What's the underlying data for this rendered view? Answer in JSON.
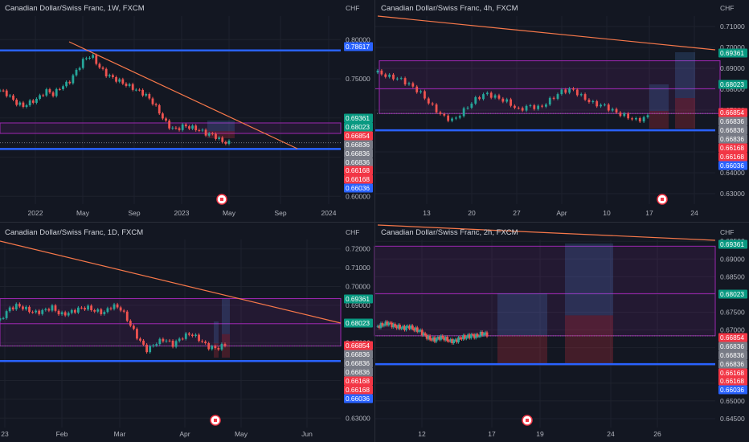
{
  "colors": {
    "background": "#131722",
    "grid": "#1e222d",
    "up": "#26a69a",
    "down": "#ef5350",
    "blue_line": "#2962ff",
    "trend_line": "#f7784a",
    "zone": "#9c27b0",
    "tag_green": "#089981",
    "tag_red": "#f23645",
    "tag_blue": "#2962ff",
    "tag_gray": "#787b86"
  },
  "panels": [
    {
      "title": "Canadian Dollar/Swiss Franc, 1W, FXCM",
      "currency": "CHF",
      "event_icon": "canada-flag-icon"
    },
    {
      "title": "Canadian Dollar/Swiss Franc, 4h, FXCM",
      "currency": "CHF",
      "event_icon": "canada-flag-icon"
    },
    {
      "title": "Canadian Dollar/Swiss Franc, 1D, FXCM",
      "currency": "CHF",
      "event_icon": "canada-flag-icon"
    },
    {
      "title": "Canadian Dollar/Swiss Franc, 2h, FXCM",
      "currency": "CHF",
      "event_icon": "canada-flag-icon"
    }
  ],
  "chart_data": [
    {
      "type": "candlestick",
      "title": "Canadian Dollar/Swiss Franc, 1W, FXCM",
      "ylabel": "CHF",
      "ylim": [
        0.59,
        0.83
      ],
      "y_ticks": [
        "0.80000",
        "0.75000",
        "0.70000",
        "0.65000",
        "0.60000"
      ],
      "x_ticks": [
        "2022",
        "May",
        "Sep",
        "2023",
        "May",
        "Sep",
        "2024"
      ],
      "horizontal_lines": [
        0.78617,
        0.66036
      ],
      "zone": [
        0.68023,
        0.69361
      ],
      "price_tags": [
        {
          "label": "0.78617",
          "color": "blue"
        },
        {
          "label": "0.69361",
          "color": "green"
        },
        {
          "label": "0.68023",
          "color": "green"
        },
        {
          "label": "0.66854",
          "color": "red"
        },
        {
          "label": "0.66836",
          "color": "gray"
        },
        {
          "label": "0.66836",
          "color": "gray"
        },
        {
          "label": "0.66836",
          "color": "gray"
        },
        {
          "label": "0.66168",
          "color": "red"
        },
        {
          "label": "0.66168",
          "color": "red"
        },
        {
          "label": "0.66036",
          "color": "blue"
        }
      ],
      "close_path": [
        0.735,
        0.73,
        0.72,
        0.715,
        0.72,
        0.725,
        0.735,
        0.73,
        0.74,
        0.745,
        0.76,
        0.775,
        0.78,
        0.765,
        0.755,
        0.75,
        0.745,
        0.74,
        0.735,
        0.73,
        0.72,
        0.705,
        0.69,
        0.685,
        0.69,
        0.688,
        0.685,
        0.68,
        0.678,
        0.67,
        0.668
      ]
    },
    {
      "type": "candlestick",
      "title": "Canadian Dollar/Swiss Franc, 4h, FXCM",
      "ylabel": "CHF",
      "ylim": [
        0.625,
        0.715
      ],
      "y_ticks": [
        "0.71000",
        "0.70000",
        "0.69000",
        "0.68000",
        "0.67000",
        "0.66000",
        "0.65000",
        "0.64000",
        "0.63000"
      ],
      "x_ticks": [
        "13",
        "20",
        "27",
        "Apr",
        "10",
        "17",
        "24"
      ],
      "horizontal_lines": [
        0.66036
      ],
      "zone": [
        0.66836,
        0.69361
      ],
      "price_tags": [
        {
          "label": "0.69361",
          "color": "green"
        },
        {
          "label": "0.68023",
          "color": "green"
        },
        {
          "label": "0.66854",
          "color": "red"
        },
        {
          "label": "0.66836",
          "color": "gray"
        },
        {
          "label": "0.66836",
          "color": "gray"
        },
        {
          "label": "0.66836",
          "color": "gray"
        },
        {
          "label": "0.66168",
          "color": "red"
        },
        {
          "label": "0.66168",
          "color": "red"
        },
        {
          "label": "0.66036",
          "color": "blue"
        }
      ],
      "close_path": [
        0.688,
        0.686,
        0.685,
        0.682,
        0.678,
        0.672,
        0.667,
        0.665,
        0.67,
        0.675,
        0.678,
        0.676,
        0.674,
        0.67,
        0.672,
        0.671,
        0.675,
        0.679,
        0.68,
        0.676,
        0.673,
        0.672,
        0.669,
        0.667,
        0.665,
        0.667
      ]
    },
    {
      "type": "candlestick",
      "title": "Canadian Dollar/Swiss Franc, 1D, FXCM",
      "ylabel": "CHF",
      "ylim": [
        0.625,
        0.725
      ],
      "y_ticks": [
        "0.72000",
        "0.71000",
        "0.70000",
        "0.69000",
        "0.68000",
        "0.67000",
        "0.66000",
        "0.65000",
        "0.64000",
        "0.63000"
      ],
      "x_ticks": [
        "23",
        "Feb",
        "Mar",
        "Apr",
        "May",
        "Jun"
      ],
      "horizontal_lines": [
        0.66036
      ],
      "zone": [
        0.66836,
        0.69361
      ],
      "price_tags": [
        {
          "label": "0.69361",
          "color": "green"
        },
        {
          "label": "0.68023",
          "color": "green"
        },
        {
          "label": "0.66854",
          "color": "red"
        },
        {
          "label": "0.66836",
          "color": "gray"
        },
        {
          "label": "0.66836",
          "color": "gray"
        },
        {
          "label": "0.66836",
          "color": "gray"
        },
        {
          "label": "0.66168",
          "color": "red"
        },
        {
          "label": "0.66168",
          "color": "red"
        },
        {
          "label": "0.66036",
          "color": "blue"
        }
      ],
      "close_path": [
        0.682,
        0.688,
        0.69,
        0.688,
        0.686,
        0.687,
        0.689,
        0.685,
        0.686,
        0.688,
        0.689,
        0.687,
        0.686,
        0.69,
        0.688,
        0.68,
        0.672,
        0.666,
        0.67,
        0.672,
        0.669,
        0.673,
        0.675,
        0.672,
        0.668,
        0.667,
        0.669
      ]
    },
    {
      "type": "candlestick",
      "title": "Canadian Dollar/Swiss Franc, 2h, FXCM",
      "ylabel": "CHF",
      "ylim": [
        0.6425,
        0.6955
      ],
      "y_ticks": [
        "0.69500",
        "0.69000",
        "0.68500",
        "0.68000",
        "0.67500",
        "0.67000",
        "0.66500",
        "0.66000",
        "0.65500",
        "0.65000",
        "0.64500"
      ],
      "x_ticks": [
        "12",
        "17",
        "19",
        "24",
        "26"
      ],
      "horizontal_lines": [
        0.66036
      ],
      "zone": [
        0.66836,
        0.69361
      ],
      "price_tags": [
        {
          "label": "0.69361",
          "color": "green"
        },
        {
          "label": "0.68023",
          "color": "green"
        },
        {
          "label": "0.66854",
          "color": "red"
        },
        {
          "label": "0.66836",
          "color": "gray"
        },
        {
          "label": "0.66836",
          "color": "gray"
        },
        {
          "label": "0.66836",
          "color": "gray"
        },
        {
          "label": "0.66168",
          "color": "red"
        },
        {
          "label": "0.66168",
          "color": "red"
        },
        {
          "label": "0.66036",
          "color": "blue"
        }
      ],
      "close_path": [
        0.671,
        0.6715,
        0.672,
        0.6712,
        0.6708,
        0.6705,
        0.671,
        0.6702,
        0.6698,
        0.6685,
        0.6675,
        0.6672,
        0.668,
        0.6675,
        0.6668,
        0.667,
        0.6678,
        0.668,
        0.6685,
        0.6682,
        0.669,
        0.6688
      ]
    }
  ]
}
